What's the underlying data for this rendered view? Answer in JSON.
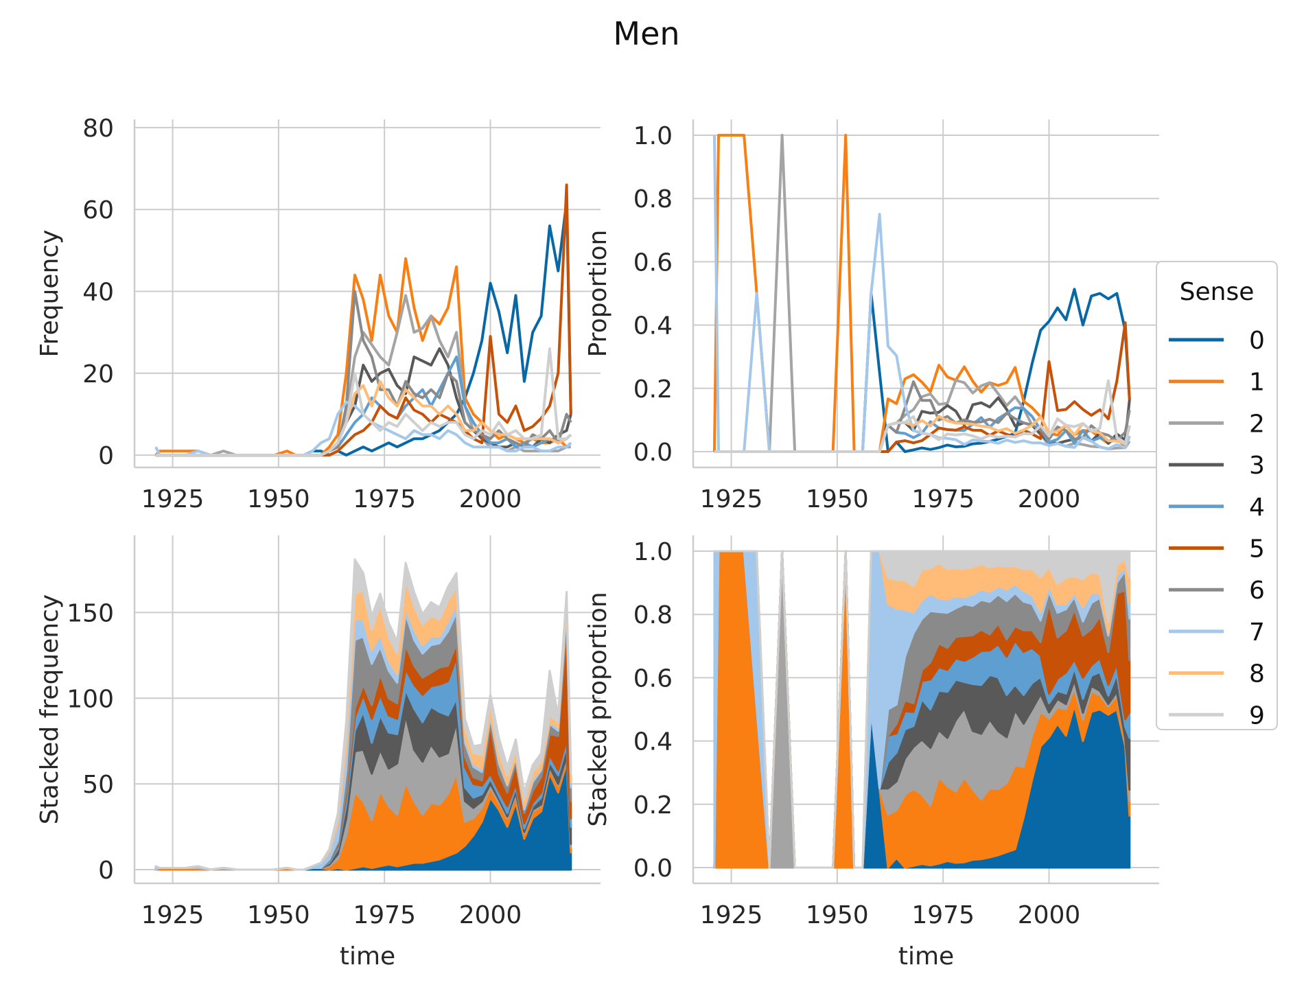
{
  "title": "Men",
  "chart_data": {
    "type": "line",
    "figure_title": "Men",
    "colors": {
      "0": "#0868a6",
      "1": "#f97f12",
      "2": "#a4a4a4",
      "3": "#595959",
      "4": "#5f9ed1",
      "5": "#c75107",
      "6": "#8a8a8a",
      "7": "#a3c8ec",
      "8": "#ffbc79",
      "9": "#cfcfcf"
    },
    "legend": {
      "title": "Sense",
      "placement": "right",
      "entries": [
        "0",
        "1",
        "2",
        "3",
        "4",
        "5",
        "6",
        "7",
        "8",
        "9"
      ]
    },
    "panels": [
      {
        "id": "frequency",
        "type": "line",
        "ylabel": "Frequency",
        "xlabel": "",
        "xlim": [
          1916,
          2026
        ],
        "ylim": [
          -3,
          82
        ],
        "xticks": [
          1925,
          1950,
          1975,
          2000
        ],
        "yticks": [
          0,
          20,
          40,
          60,
          80
        ],
        "ytick_labels": [
          "0",
          "20",
          "40",
          "60",
          "80"
        ],
        "grid": true
      },
      {
        "id": "proportion",
        "type": "line",
        "ylabel": "Proportion",
        "xlabel": "",
        "xlim": [
          1916,
          2026
        ],
        "ylim": [
          -0.05,
          1.05
        ],
        "xticks": [
          1925,
          1950,
          1975,
          2000
        ],
        "yticks": [
          0,
          0.2,
          0.4,
          0.6,
          0.8,
          1.0
        ],
        "ytick_labels": [
          "0.0",
          "0.2",
          "0.4",
          "0.6",
          "0.8",
          "1.0"
        ],
        "grid": true
      },
      {
        "id": "stacked-frequency",
        "type": "area",
        "ylabel": "Stacked frequency",
        "xlabel": "time",
        "xlim": [
          1916,
          2026
        ],
        "ylim": [
          -8,
          195
        ],
        "xticks": [
          1925,
          1950,
          1975,
          2000
        ],
        "yticks": [
          0,
          50,
          100,
          150
        ],
        "ytick_labels": [
          "0",
          "50",
          "100",
          "150"
        ],
        "grid": true
      },
      {
        "id": "stacked-proportion",
        "type": "area",
        "ylabel": "Stacked proportion",
        "xlabel": "time",
        "xlim": [
          1916,
          2026
        ],
        "ylim": [
          -0.05,
          1.05
        ],
        "xticks": [
          1925,
          1950,
          1975,
          2000
        ],
        "yticks": [
          0,
          0.2,
          0.4,
          0.6,
          0.8,
          1.0
        ],
        "ytick_labels": [
          "0.0",
          "0.2",
          "0.4",
          "0.6",
          "0.8",
          "1.0"
        ],
        "grid": true
      }
    ],
    "x": [
      1921,
      1922,
      1925,
      1928,
      1931,
      1934,
      1937,
      1940,
      1943,
      1946,
      1949,
      1952,
      1954,
      1956,
      1958,
      1960,
      1962,
      1964,
      1966,
      1968,
      1970,
      1972,
      1974,
      1976,
      1978,
      1980,
      1982,
      1984,
      1986,
      1988,
      1990,
      1992,
      1994,
      1996,
      1998,
      2000,
      2002,
      2004,
      2006,
      2008,
      2010,
      2012,
      2014,
      2016,
      2018,
      2019
    ],
    "series": [
      {
        "name": "0",
        "values": [
          0,
          0,
          0,
          0,
          0,
          0,
          0,
          0,
          0,
          0,
          0,
          0,
          0,
          0,
          1,
          1,
          0,
          1,
          0,
          1,
          2,
          1,
          2,
          3,
          2,
          3,
          4,
          4,
          5,
          6,
          8,
          10,
          14,
          20,
          28,
          42,
          35,
          25,
          39,
          18,
          30,
          34,
          56,
          45,
          62,
          10
        ]
      },
      {
        "name": "1",
        "values": [
          0,
          1,
          1,
          1,
          1,
          0,
          0,
          0,
          0,
          0,
          0,
          1,
          0,
          0,
          0,
          0,
          2,
          5,
          20,
          44,
          38,
          28,
          44,
          34,
          30,
          48,
          36,
          28,
          34,
          32,
          36,
          46,
          14,
          10,
          8,
          6,
          4,
          5,
          4,
          3,
          4,
          3,
          3,
          4,
          2,
          3
        ]
      },
      {
        "name": "2",
        "values": [
          0,
          0,
          0,
          0,
          0,
          0,
          1,
          0,
          0,
          0,
          0,
          0,
          0,
          0,
          0,
          0,
          1,
          3,
          10,
          24,
          30,
          27,
          24,
          22,
          30,
          39,
          30,
          31,
          34,
          28,
          24,
          30,
          12,
          6,
          4,
          2,
          2,
          1,
          2,
          1,
          1,
          1,
          1,
          1,
          2,
          2
        ]
      },
      {
        "name": "3",
        "values": [
          0,
          0,
          0,
          0,
          0,
          0,
          0,
          0,
          0,
          0,
          0,
          0,
          0,
          0,
          0,
          0,
          1,
          3,
          8,
          12,
          22,
          18,
          20,
          21,
          17,
          15,
          24,
          23,
          22,
          26,
          22,
          14,
          8,
          6,
          4,
          3,
          2,
          2,
          3,
          2,
          2,
          4,
          3,
          5,
          6,
          10
        ]
      },
      {
        "name": "4",
        "values": [
          0,
          0,
          0,
          0,
          0,
          0,
          0,
          0,
          0,
          0,
          0,
          0,
          0,
          0,
          0,
          0,
          1,
          2,
          5,
          8,
          10,
          14,
          12,
          10,
          9,
          12,
          14,
          16,
          12,
          16,
          20,
          24,
          12,
          8,
          5,
          3,
          3,
          4,
          2,
          3,
          2,
          3,
          4,
          3,
          4,
          5
        ]
      },
      {
        "name": "5",
        "values": [
          0,
          0,
          0,
          0,
          0,
          0,
          0,
          0,
          0,
          0,
          0,
          0,
          0,
          0,
          0,
          0,
          0,
          1,
          3,
          5,
          6,
          8,
          12,
          10,
          9,
          14,
          11,
          10,
          8,
          10,
          9,
          8,
          6,
          4,
          3,
          29,
          10,
          8,
          12,
          6,
          7,
          9,
          12,
          20,
          66,
          10
        ]
      },
      {
        "name": "6",
        "values": [
          0,
          0,
          0,
          0,
          0,
          0,
          0,
          0,
          0,
          0,
          0,
          0,
          0,
          0,
          0,
          0,
          1,
          2,
          12,
          40,
          28,
          24,
          16,
          16,
          12,
          18,
          15,
          14,
          16,
          14,
          20,
          18,
          8,
          6,
          5,
          4,
          6,
          4,
          3,
          2,
          5,
          4,
          6,
          3,
          10,
          8
        ]
      },
      {
        "name": "7",
        "values": [
          2,
          0,
          0,
          0,
          1,
          0,
          0,
          0,
          0,
          0,
          0,
          0,
          0,
          0,
          1,
          3,
          4,
          10,
          13,
          12,
          10,
          8,
          7,
          6,
          5,
          4,
          6,
          5,
          5,
          4,
          6,
          5,
          3,
          2,
          2,
          2,
          2,
          1,
          1,
          2,
          2,
          1,
          1,
          2,
          2,
          3
        ]
      },
      {
        "name": "8",
        "values": [
          0,
          0,
          0,
          0,
          0,
          0,
          0,
          0,
          0,
          0,
          0,
          0,
          0,
          0,
          0,
          0,
          1,
          3,
          8,
          15,
          17,
          12,
          18,
          14,
          12,
          16,
          14,
          12,
          12,
          10,
          12,
          10,
          6,
          6,
          8,
          6,
          5,
          5,
          4,
          4,
          4,
          4,
          4,
          3,
          4,
          5
        ]
      },
      {
        "name": "9",
        "values": [
          0,
          0,
          0,
          0,
          0,
          0,
          0,
          0,
          0,
          0,
          0,
          0,
          0,
          0,
          0,
          0,
          1,
          3,
          8,
          20,
          10,
          8,
          6,
          8,
          7,
          10,
          8,
          6,
          8,
          7,
          8,
          8,
          5,
          4,
          6,
          5,
          8,
          5,
          6,
          4,
          4,
          5,
          26,
          4,
          4,
          5
        ]
      }
    ]
  }
}
